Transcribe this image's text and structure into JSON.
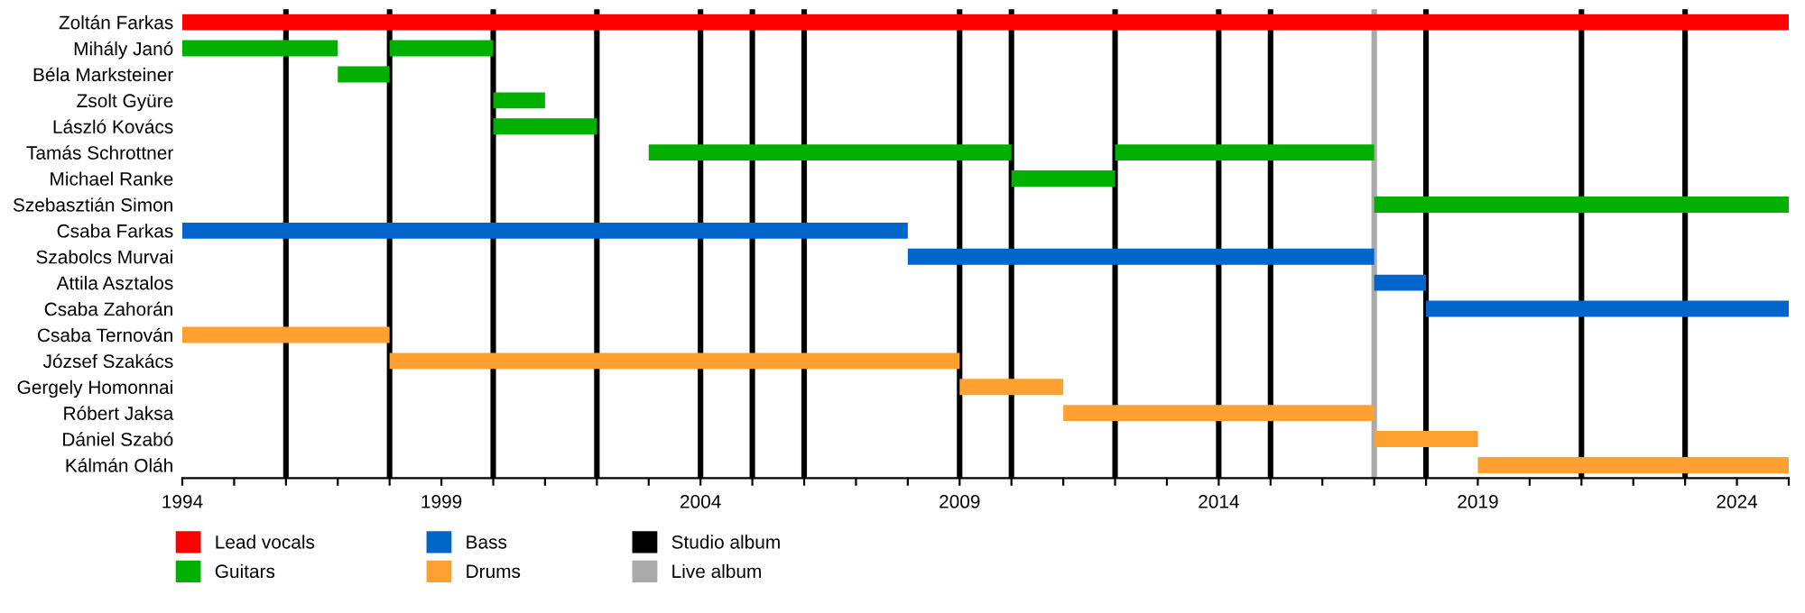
{
  "chart_data": {
    "type": "bar",
    "orientation": "horizontal",
    "categories": [
      "Zoltán Farkas",
      "Mihály Janó",
      "Béla Marksteiner",
      "Zsolt Gyüre",
      "László Kovács",
      "Tamás Schrottner",
      "Michael Ranke",
      "Szebasztián Simon",
      "Csaba Farkas",
      "Szabolcs Murvai",
      "Attila Asztalos",
      "Csaba Zahorán",
      "Csaba Ternován",
      "József Szakács",
      "Gergely Homonnai",
      "Róbert Jaksa",
      "Dániel Szabó",
      "Kálmán Oláh"
    ],
    "series": [
      {
        "name": "Lead vocals",
        "color": "#ff0000",
        "base": [
          1994,
          null,
          null,
          null,
          null,
          null,
          null,
          null,
          null,
          null,
          null,
          null,
          null,
          null,
          null,
          null,
          null,
          null
        ],
        "values": [
          31,
          null,
          null,
          null,
          null,
          null,
          null,
          null,
          null,
          null,
          null,
          null,
          null,
          null,
          null,
          null,
          null,
          null
        ]
      },
      {
        "name": "Guitars",
        "color": "#00b000",
        "base": [
          null,
          1994,
          1997,
          2000,
          2000,
          2003,
          2010,
          2017,
          null,
          null,
          null,
          null,
          null,
          null,
          null,
          null,
          null,
          null
        ],
        "values": [
          null,
          3,
          1,
          1,
          2,
          7,
          2,
          8,
          null,
          null,
          null,
          null,
          null,
          null,
          null,
          null,
          null,
          null
        ]
      },
      {
        "color": "#00b000",
        "base": [
          null,
          1998,
          null,
          null,
          null,
          2012,
          null,
          null,
          null,
          null,
          null,
          null,
          null,
          null,
          null,
          null,
          null,
          null
        ],
        "values": [
          null,
          2,
          null,
          null,
          null,
          5,
          null,
          null,
          null,
          null,
          null,
          null,
          null,
          null,
          null,
          null,
          null,
          null
        ]
      },
      {
        "name": "Bass",
        "color": "#0066cc",
        "base": [
          null,
          null,
          null,
          null,
          null,
          null,
          null,
          null,
          1994,
          2008,
          2017,
          2018,
          null,
          null,
          null,
          null,
          null,
          null
        ],
        "values": [
          null,
          null,
          null,
          null,
          null,
          null,
          null,
          null,
          14,
          9,
          1,
          7,
          null,
          null,
          null,
          null,
          null,
          null
        ]
      },
      {
        "name": "Drums",
        "color": "#ffa030",
        "base": [
          null,
          null,
          null,
          null,
          null,
          null,
          null,
          null,
          null,
          null,
          null,
          null,
          1994,
          1998,
          2009,
          2011,
          2017,
          2019
        ],
        "values": [
          null,
          null,
          null,
          null,
          null,
          null,
          null,
          null,
          null,
          null,
          null,
          null,
          4,
          11,
          2,
          6,
          2,
          6
        ]
      }
    ],
    "xlim": [
      1994,
      2025
    ],
    "xticks": [
      1994,
      {
        "value": 1995,
        "label": null
      },
      {
        "value": 1996,
        "label": null
      },
      {
        "value": 1997,
        "label": null
      },
      {
        "value": 1998,
        "label": null
      },
      1999,
      {
        "value": 2000,
        "label": null
      },
      {
        "value": 2001,
        "label": null
      },
      {
        "value": 2002,
        "label": null
      },
      {
        "value": 2003,
        "label": null
      },
      2004,
      {
        "value": 2005,
        "label": null
      },
      {
        "value": 2006,
        "label": null
      },
      {
        "value": 2007,
        "label": null
      },
      {
        "value": 2008,
        "label": null
      },
      2009,
      {
        "value": 2010,
        "label": null
      },
      {
        "value": 2011,
        "label": null
      },
      {
        "value": 2012,
        "label": null
      },
      {
        "value": 2013,
        "label": null
      },
      2014,
      {
        "value": 2015,
        "label": null
      },
      {
        "value": 2016,
        "label": null
      },
      {
        "value": 2017,
        "label": null
      },
      {
        "value": 2018,
        "label": null
      },
      2019,
      {
        "value": 2020,
        "label": null
      },
      {
        "value": 2021,
        "label": null
      },
      {
        "value": 2022,
        "label": null
      },
      {
        "value": 2023,
        "label": null
      },
      2024,
      {
        "value": 2025,
        "label": null
      }
    ],
    "ref_lines": [
      {
        "axis": "x",
        "value": 1996,
        "label": "Studio album",
        "color": "#000000"
      },
      {
        "axis": "x",
        "value": 1998,
        "color": "#000000"
      },
      {
        "axis": "x",
        "value": 2000,
        "color": "#000000"
      },
      {
        "axis": "x",
        "value": 2002,
        "color": "#000000"
      },
      {
        "axis": "x",
        "value": 2004,
        "color": "#000000"
      },
      {
        "axis": "x",
        "value": 2005,
        "color": "#000000"
      },
      {
        "axis": "x",
        "value": 2006,
        "color": "#000000"
      },
      {
        "axis": "x",
        "value": 2009,
        "color": "#000000"
      },
      {
        "axis": "x",
        "value": 2010,
        "color": "#000000"
      },
      {
        "axis": "x",
        "value": 2012,
        "color": "#000000"
      },
      {
        "axis": "x",
        "value": 2014,
        "color": "#000000"
      },
      {
        "axis": "x",
        "value": 2015,
        "color": "#000000"
      },
      {
        "axis": "x",
        "value": 2017,
        "label": "Live album",
        "color": "#aaaaaa"
      },
      {
        "axis": "x",
        "value": 2018,
        "color": "#000000"
      },
      {
        "axis": "x",
        "value": 2021,
        "color": "#000000"
      },
      {
        "axis": "x",
        "value": 2023,
        "color": "#000000"
      }
    ],
    "grid": false,
    "legend": "bottom left"
  }
}
